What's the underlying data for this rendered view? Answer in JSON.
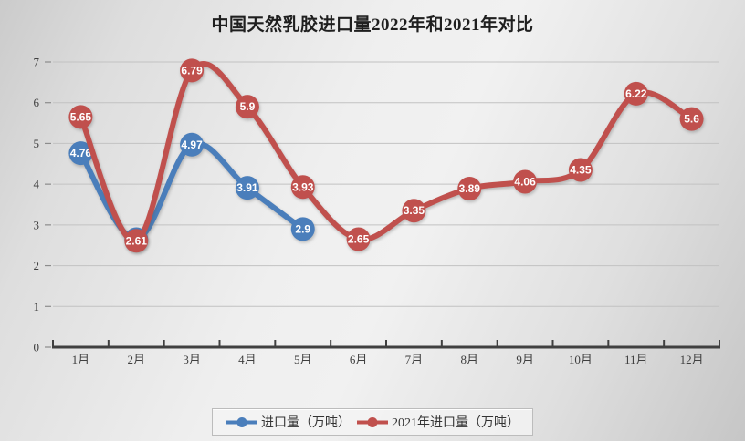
{
  "title": "中国天然乳胶进口量2022年和2021年对比",
  "chart_data": {
    "type": "line",
    "title": "中国天然乳胶进口量2022年和2021年对比",
    "categories": [
      "1月",
      "2月",
      "3月",
      "4月",
      "5月",
      "6月",
      "7月",
      "8月",
      "9月",
      "10月",
      "11月",
      "12月"
    ],
    "series": [
      {
        "name": "进口量（万吨）",
        "color": "#4a7ebb",
        "values": [
          4.76,
          2.65,
          4.97,
          3.91,
          2.9,
          null,
          null,
          null,
          null,
          null,
          null,
          null
        ]
      },
      {
        "name": "2021年进口量（万吨）",
        "color": "#c0504d",
        "values": [
          5.65,
          2.61,
          6.79,
          5.9,
          3.93,
          2.65,
          3.35,
          3.89,
          4.06,
          4.35,
          6.22,
          5.6
        ]
      }
    ],
    "xlabel": "",
    "ylabel": "",
    "ylim": [
      0,
      7
    ],
    "yticks": [
      0,
      1,
      2,
      3,
      4,
      5,
      6,
      7
    ],
    "grid": true,
    "smooth_lines": true,
    "data_labels": "centered-on-marker",
    "legend_position": "bottom"
  },
  "colors": {
    "series_2022": "#4a7ebb",
    "series_2021": "#c0504d",
    "gridline": "#c2c2c2",
    "axis": "#404040",
    "axis_text": "#3f3f3f",
    "data_label_text": "#ffffff"
  }
}
